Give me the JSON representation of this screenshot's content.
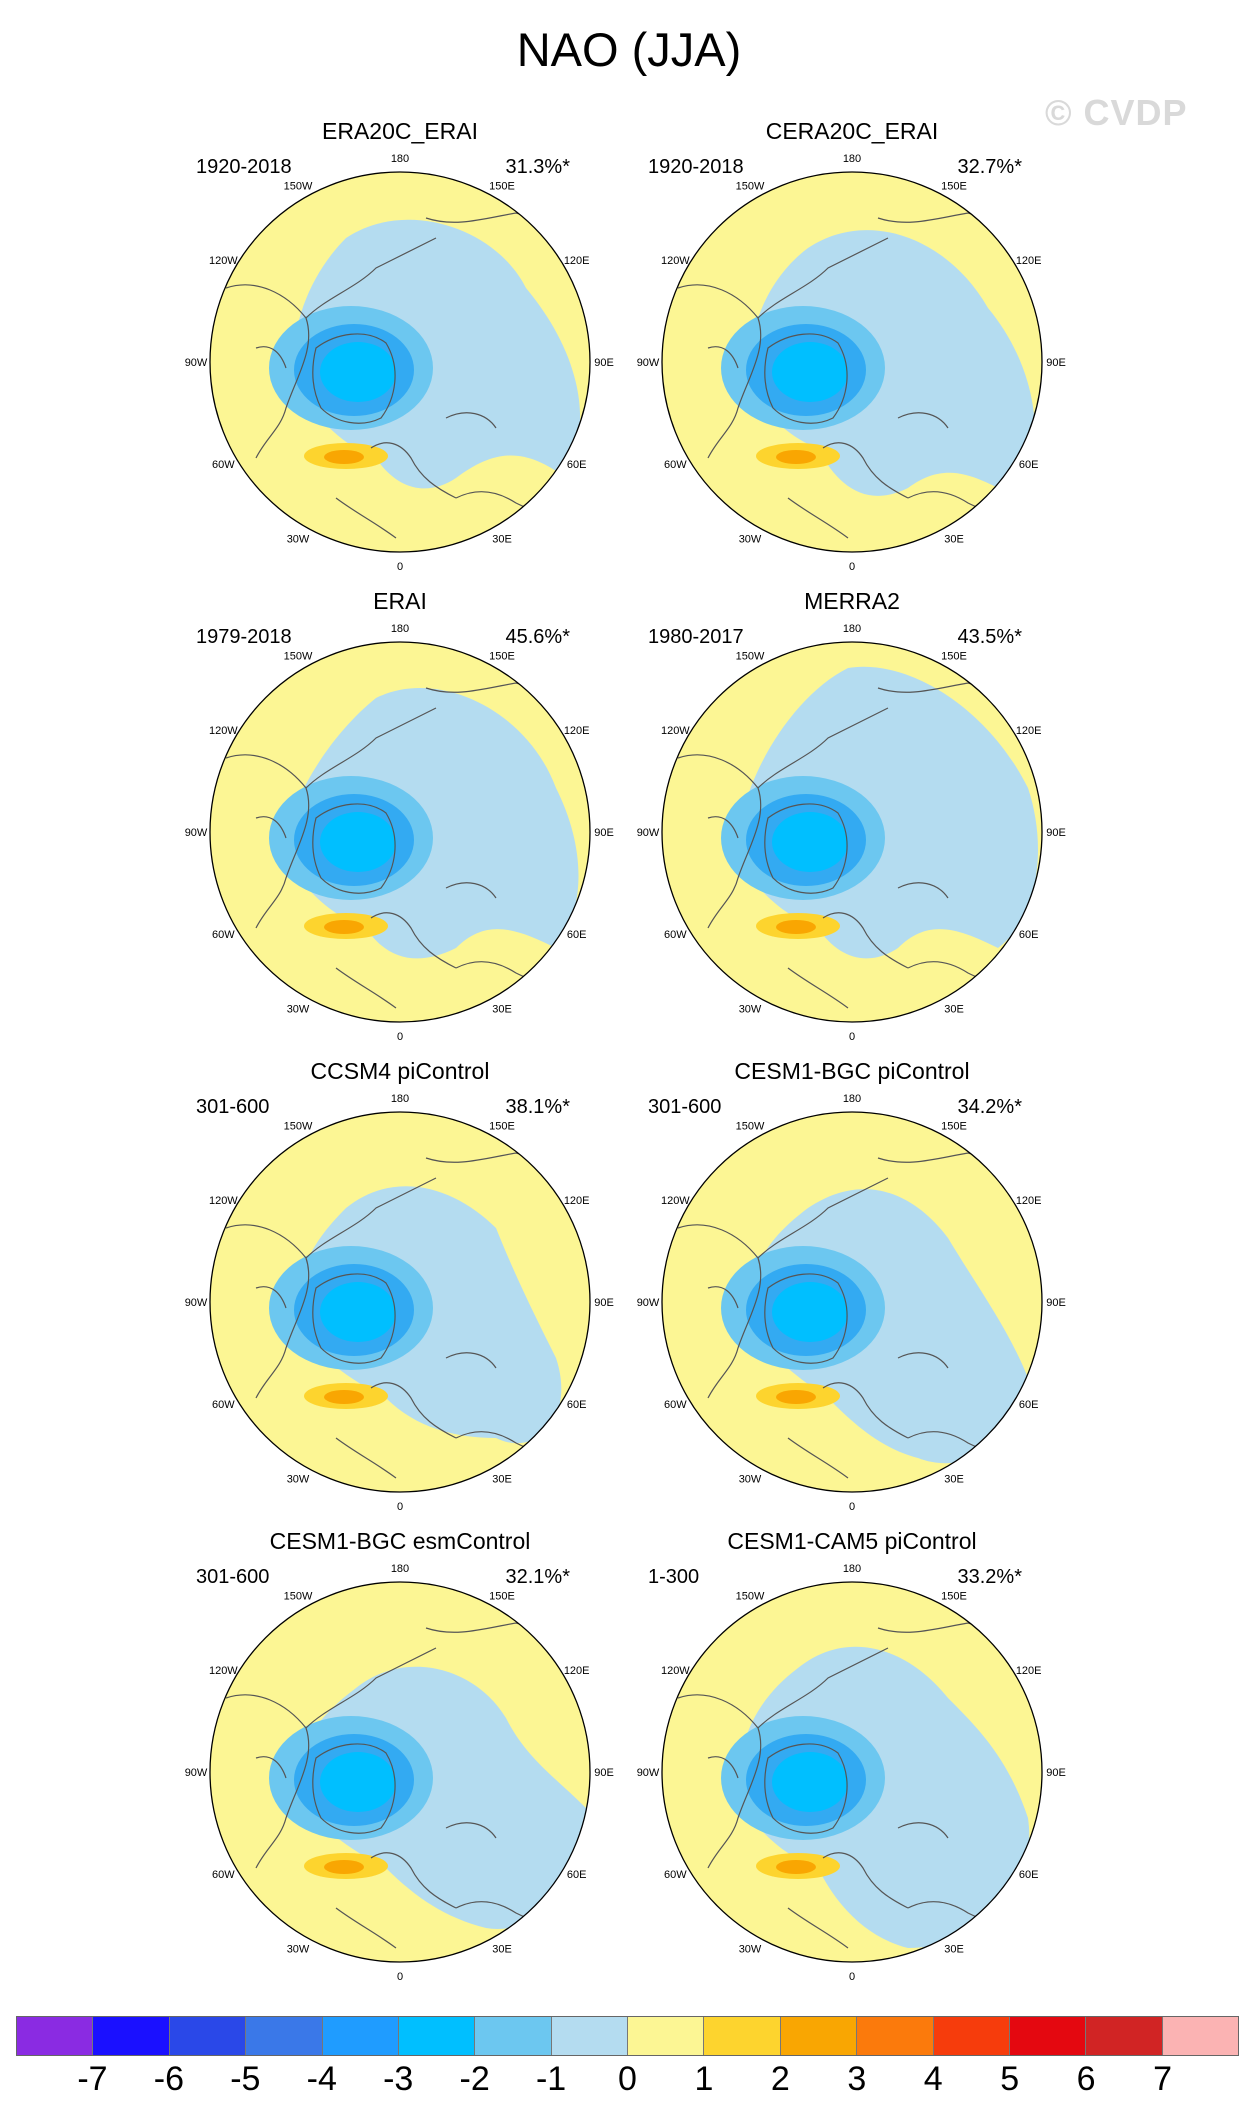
{
  "figure": {
    "title": "NAO (JJA)",
    "watermark": "© CVDP"
  },
  "longitude_labels": [
    "180",
    "150E",
    "120E",
    "90E",
    "60E",
    "30E",
    "0",
    "30W",
    "60W",
    "90W",
    "120W",
    "150W"
  ],
  "panels": [
    {
      "title": "ERA20C_ERAI",
      "period": "1920-2018",
      "variance": "31.3%*"
    },
    {
      "title": "CERA20C_ERAI",
      "period": "1920-2018",
      "variance": "32.7%*"
    },
    {
      "title": "ERAI",
      "period": "1979-2018",
      "variance": "45.6%*"
    },
    {
      "title": "MERRA2",
      "period": "1980-2017",
      "variance": "43.5%*"
    },
    {
      "title": "CCSM4 piControl",
      "period": "301-600",
      "variance": "38.1%*"
    },
    {
      "title": "CESM1-BGC piControl",
      "period": "301-600",
      "variance": "34.2%*"
    },
    {
      "title": "CESM1-BGC esmControl",
      "period": "301-600",
      "variance": "32.1%*"
    },
    {
      "title": "CESM1-CAM5 piControl",
      "period": "1-300",
      "variance": "33.2%*"
    }
  ],
  "colorbar": {
    "colors": [
      "#8a2be2",
      "#1a10ff",
      "#2a48e8",
      "#3a78e8",
      "#1f9cff",
      "#00bfff",
      "#6cc7f0",
      "#b4dcf0",
      "#fcf694",
      "#fdd42e",
      "#f9a602",
      "#fb7a0c",
      "#f63c0c",
      "#e40810",
      "#d12424",
      "#fbb3b3"
    ],
    "labels": [
      "-7",
      "-6",
      "-5",
      "-4",
      "-3",
      "-2",
      "-1",
      "0",
      "1",
      "2",
      "3",
      "4",
      "5",
      "6",
      "7"
    ]
  },
  "palette": {
    "positive_light": "#fcf694",
    "negative_light": "#b4dcf0",
    "negative_mid": "#6cc7f0",
    "negative_strong": "#33aaf2",
    "negative_core": "#00bfff",
    "positive_mid": "#fdd42e",
    "positive_strong": "#f9a602",
    "coastline": "#555555"
  }
}
